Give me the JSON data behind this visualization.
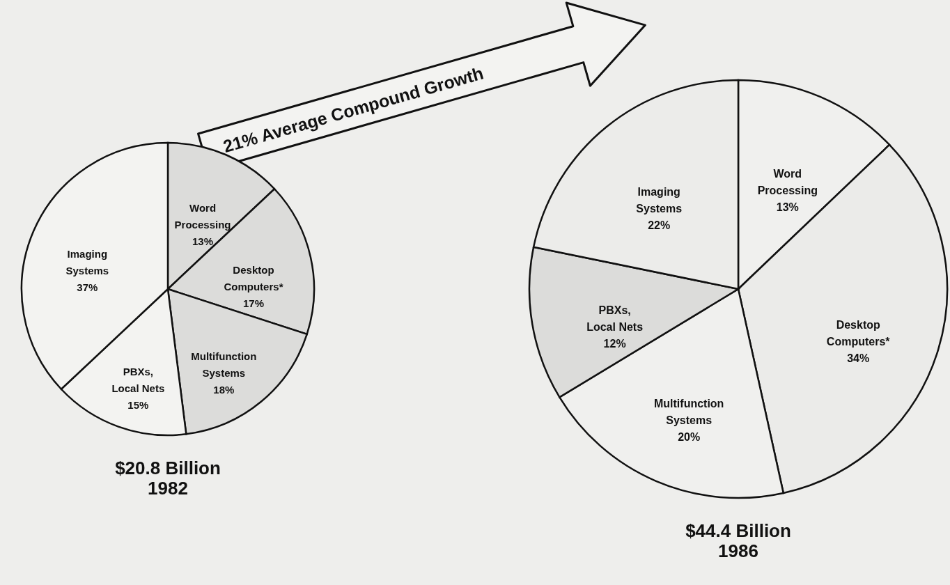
{
  "chart_data": [
    {
      "type": "pie",
      "title": "$20.8 Billion",
      "subtitle": "1982",
      "categories": [
        "Word Processing",
        "Desktop Computers*",
        "Multifunction Systems",
        "PBXs, Local Nets",
        "Imaging Systems"
      ],
      "values": [
        13,
        17,
        18,
        15,
        37
      ],
      "value_labels": [
        "13%",
        "17%",
        "18%",
        "15%",
        "37%"
      ],
      "colors": [
        "#dcdcda",
        "#dcdcda",
        "#dcdcda",
        "#f3f3f1",
        "#f3f3f1"
      ],
      "annotations": [
        "21% Average Compound Growth"
      ]
    },
    {
      "type": "pie",
      "title": "$44.4 Billion",
      "subtitle": "1986",
      "categories": [
        "Word Processing",
        "Desktop Computers*",
        "Multifunction Systems",
        "PBXs, Local Nets",
        "Imaging Systems"
      ],
      "values": [
        13,
        34,
        20,
        12,
        22
      ],
      "value_labels": [
        "13%",
        "34%",
        "20%",
        "12%",
        "22%"
      ],
      "colors": [
        "#f0f0ee",
        "#ebebe9",
        "#f0f0ee",
        "#dcdcda",
        "#ececea"
      ]
    }
  ]
}
